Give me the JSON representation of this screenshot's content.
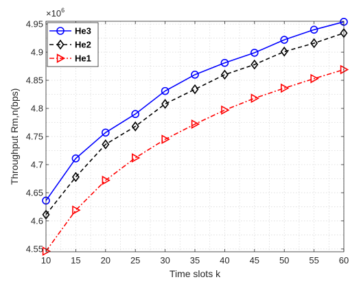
{
  "chart_data": {
    "type": "line",
    "title": "",
    "xlabel": "Time slots k",
    "ylabel": "Throughput Rm,n(bps)",
    "exponent_label_base": "×10",
    "exponent_label_power": "6",
    "x": [
      10,
      15,
      20,
      25,
      30,
      35,
      40,
      45,
      50,
      55,
      60
    ],
    "xlim": [
      10,
      60
    ],
    "ylim": [
      4.545,
      4.955
    ],
    "xticks": [
      10,
      15,
      20,
      25,
      30,
      35,
      40,
      45,
      50,
      55,
      60
    ],
    "yticks": [
      4.55,
      4.6,
      4.65,
      4.7,
      4.75,
      4.8,
      4.85,
      4.9,
      4.95
    ],
    "grid": true,
    "legend_position": "top-left",
    "series": [
      {
        "name": "He3",
        "color": "#0000ff",
        "line_style": "solid",
        "marker": "circle",
        "values": [
          4.636,
          4.711,
          4.757,
          4.79,
          4.831,
          4.86,
          4.881,
          4.899,
          4.922,
          4.94,
          4.954
        ]
      },
      {
        "name": "He2",
        "color": "#000000",
        "line_style": "dashed",
        "marker": "diamond",
        "values": [
          4.611,
          4.678,
          4.736,
          4.768,
          4.808,
          4.834,
          4.86,
          4.878,
          4.901,
          4.916,
          4.934
        ]
      },
      {
        "name": "He1",
        "color": "#ff0000",
        "line_style": "dashdot",
        "marker": "triangle-right",
        "values": [
          4.546,
          4.619,
          4.672,
          4.712,
          4.745,
          4.772,
          4.797,
          4.818,
          4.836,
          4.853,
          4.869
        ]
      }
    ]
  }
}
